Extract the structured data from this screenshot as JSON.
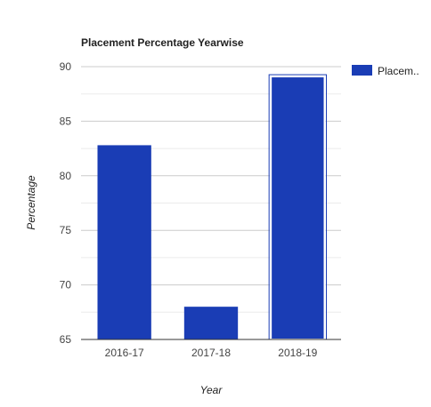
{
  "chart_data": {
    "type": "bar",
    "title": "Placement Percentage Yearwise",
    "xlabel": "Year",
    "ylabel": "Percentage",
    "categories": [
      "2016-17",
      "2017-18",
      "2018-19"
    ],
    "series": [
      {
        "name": "Placem..",
        "values": [
          82.8,
          68,
          89.1
        ],
        "color": "#1a3db5"
      }
    ],
    "ylim": [
      65,
      90
    ],
    "yticks": [
      "65",
      "70",
      "75",
      "80",
      "85",
      "90"
    ],
    "grid": true,
    "legend": "right",
    "highlighted_category": "2018-19"
  }
}
